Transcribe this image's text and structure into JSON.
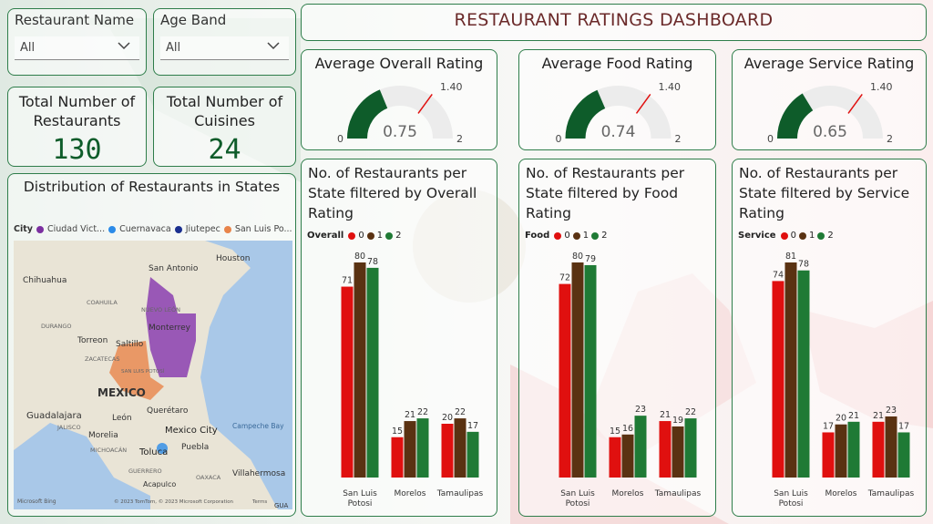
{
  "header": {
    "title": "RESTAURANT RATINGS DASHBOARD"
  },
  "slicers": [
    {
      "label": "Restaurant Name",
      "value": "All"
    },
    {
      "label": "Age Band",
      "value": "All"
    }
  ],
  "kpis": [
    {
      "title": "Total Number of Restaurants",
      "value": "130"
    },
    {
      "title": "Total Number of Cuisines",
      "value": "24"
    }
  ],
  "map": {
    "title": "Distribution of Restaurants in States",
    "legend_label": "City",
    "legend": [
      {
        "name": "Ciudad Vict...",
        "color": "#7b2fa0"
      },
      {
        "name": "Cuernavaca",
        "color": "#2b8be8"
      },
      {
        "name": "Jiutepec",
        "color": "#1a2f8f"
      },
      {
        "name": "San Luis Po...",
        "color": "#e8844a"
      }
    ],
    "places": [
      "San Antonio",
      "Houston",
      "Chihuahua",
      "COAHUILA",
      "NUEVO LEÓN",
      "Monterrey",
      "DURANGO",
      "Torreon",
      "Saltillo",
      "ZACATECAS",
      "SAN LUIS POTOSÍ",
      "MEXICO",
      "Guadalajara",
      "JALISCO",
      "León",
      "Querétaro",
      "Mexico City",
      "Campeche Bay",
      "Morelia",
      "MICHOACÁN",
      "Toluca",
      "Puebla",
      "GUERRERO",
      "Acapulco",
      "OAXACA",
      "Villahermosa",
      "Microsoft Bing",
      "© 2023 TomTom, © 2023 Microsoft Corporation",
      "Terms",
      "GUA"
    ],
    "colors": {
      "purple": "#8b3fb0",
      "orange": "#e8844a",
      "water": "#a9c8e8"
    }
  },
  "gauges": [
    {
      "title": "Average Overall Rating",
      "value": 0.75,
      "value_label": "0.75",
      "target": 1.4,
      "target_label": "1.40",
      "min": 0,
      "max": 2,
      "min_label": "0",
      "max_label": "2"
    },
    {
      "title": "Average Food Rating",
      "value": 0.74,
      "value_label": "0.74",
      "target": 1.4,
      "target_label": "1.40",
      "min": 0,
      "max": 2,
      "min_label": "0",
      "max_label": "2"
    },
    {
      "title": "Average Service Rating",
      "value": 0.65,
      "value_label": "0.65",
      "target": 1.4,
      "target_label": "1.40",
      "min": 0,
      "max": 2,
      "min_label": "0",
      "max_label": "2"
    }
  ],
  "series_colors": [
    "#e0100f",
    "#5a3212",
    "#1f7a35"
  ],
  "chart_data": [
    {
      "type": "bar",
      "title": "No. of Restaurants per State filtered by Overall Rating",
      "legend_title": "Overall",
      "categories": [
        "San Luis Potosi",
        "Morelos",
        "Tamaulipas"
      ],
      "category_lines": [
        [
          "San Luis",
          "Potosi"
        ],
        [
          "Morelos"
        ],
        [
          "Tamaulipas"
        ]
      ],
      "series": [
        {
          "name": "0",
          "values": [
            71,
            15,
            20
          ]
        },
        {
          "name": "1",
          "values": [
            80,
            21,
            22
          ]
        },
        {
          "name": "2",
          "values": [
            78,
            22,
            17
          ]
        }
      ],
      "ylim": [
        0,
        80
      ]
    },
    {
      "type": "bar",
      "title": "No. of Restaurants per State filtered by Food Rating",
      "legend_title": "Food",
      "categories": [
        "San Luis Potosi",
        "Morelos",
        "Tamaulipas"
      ],
      "category_lines": [
        [
          "San Luis",
          "Potosi"
        ],
        [
          "Morelos"
        ],
        [
          "Tamaulipas"
        ]
      ],
      "series": [
        {
          "name": "0",
          "values": [
            72,
            15,
            21
          ]
        },
        {
          "name": "1",
          "values": [
            80,
            16,
            19
          ]
        },
        {
          "name": "2",
          "values": [
            79,
            23,
            22
          ]
        }
      ],
      "ylim": [
        0,
        80
      ]
    },
    {
      "type": "bar",
      "title": "No. of Restaurants per State filtered by Service Rating",
      "legend_title": "Service",
      "categories": [
        "San Luis Potosi",
        "Morelos",
        "Tamaulipas"
      ],
      "category_lines": [
        [
          "San Luis",
          "Potosi"
        ],
        [
          "Morelos"
        ],
        [
          "Tamaulipas"
        ]
      ],
      "series": [
        {
          "name": "0",
          "values": [
            74,
            17,
            21
          ]
        },
        {
          "name": "1",
          "values": [
            81,
            20,
            23
          ]
        },
        {
          "name": "2",
          "values": [
            78,
            21,
            17
          ]
        }
      ],
      "ylim": [
        0,
        81
      ]
    }
  ]
}
